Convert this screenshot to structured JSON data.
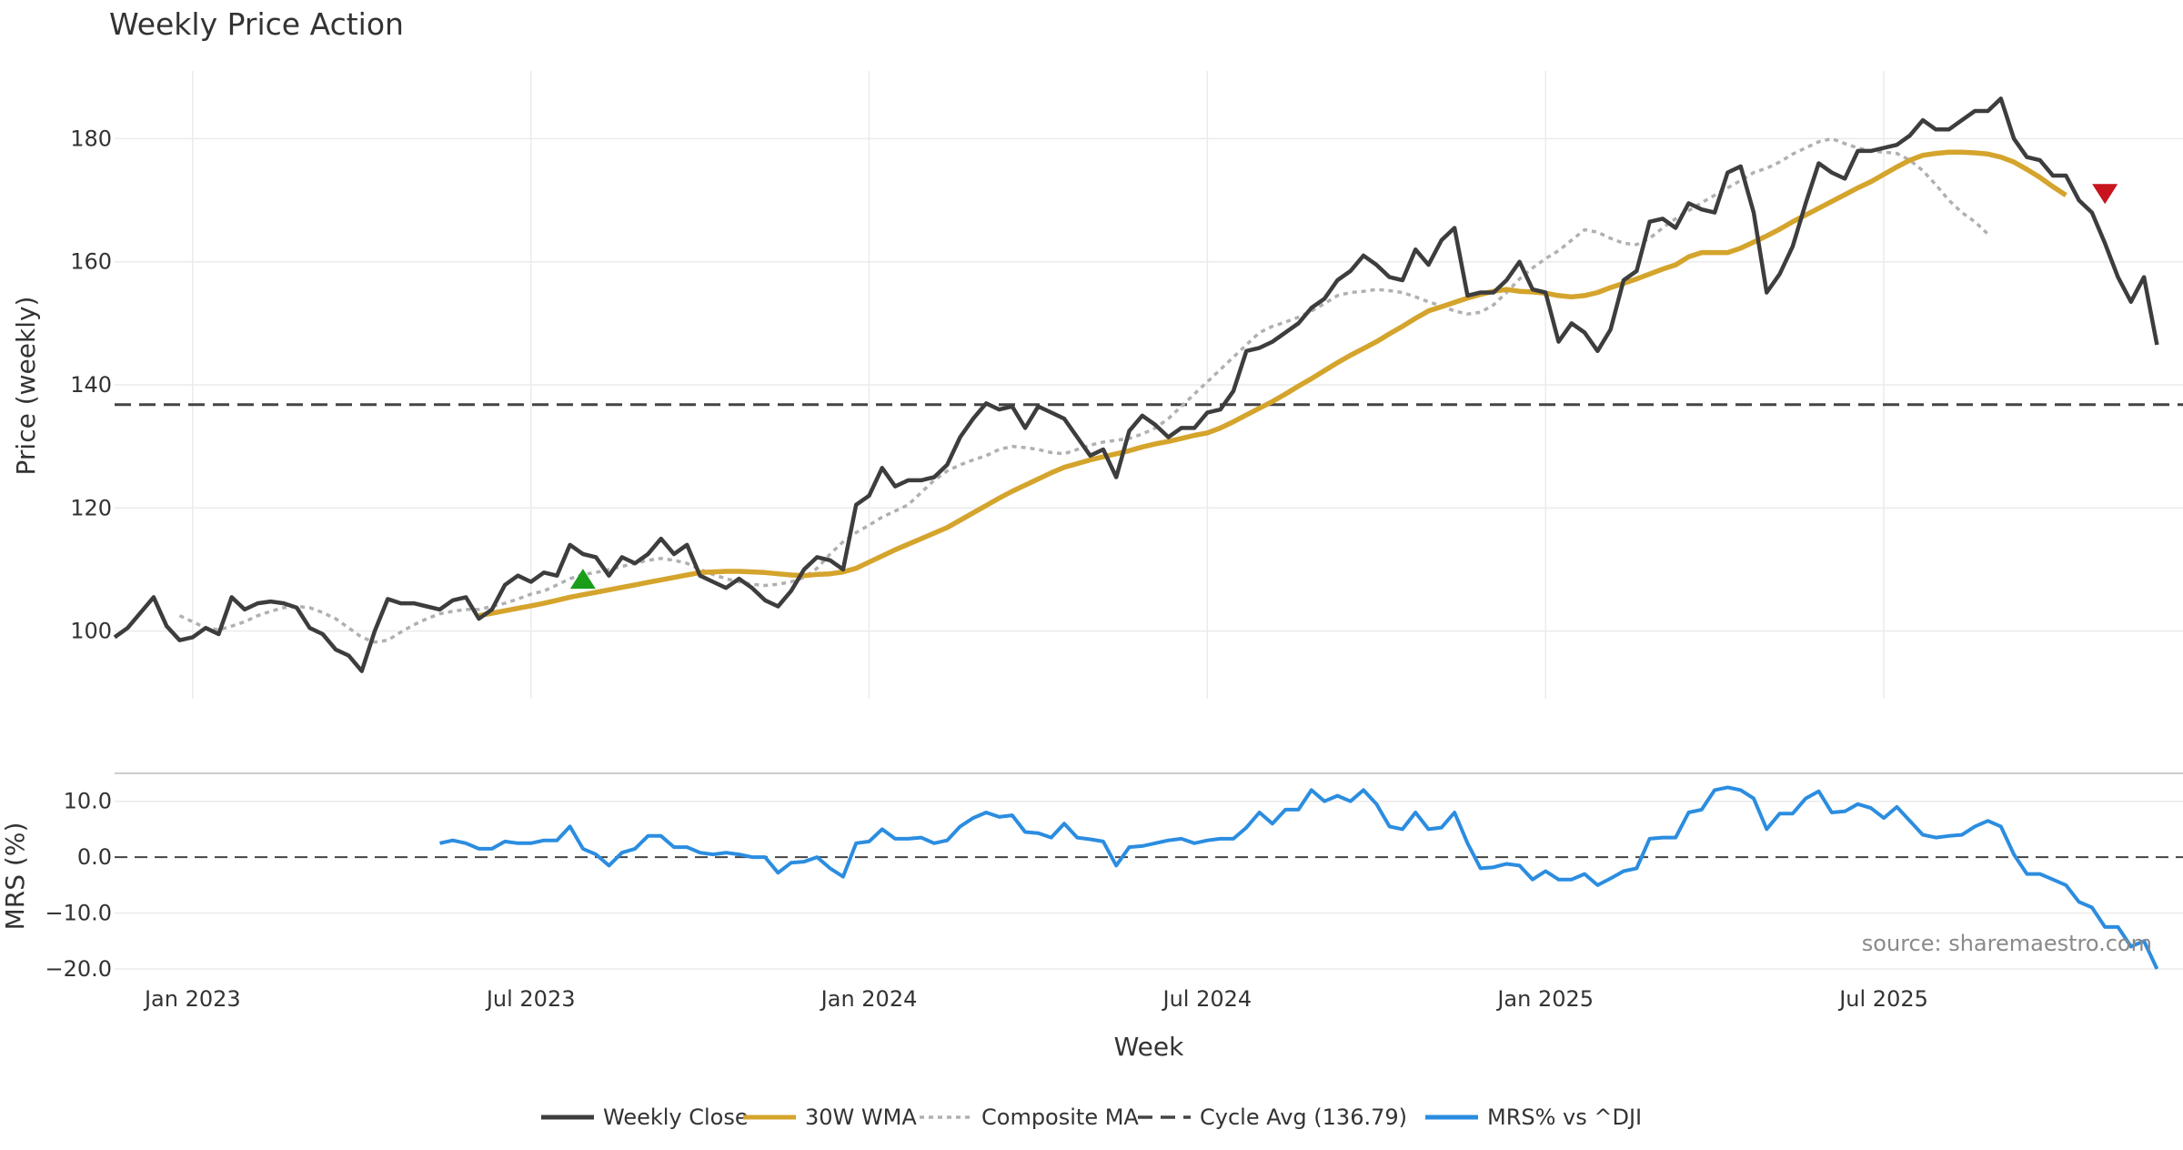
{
  "chart_data": {
    "type": "line",
    "title": "Weekly Price Action",
    "xlabel": "Week",
    "source": "source: sharemaestro.com",
    "colors": {
      "close": "#3d3d3d",
      "wma": "#d4a42c",
      "composite": "#b0b0b0",
      "cycle": "#444444",
      "mrs": "#2b8de0",
      "buy": "#1a9e1a",
      "sell": "#c8141e",
      "grid": "#ebebeb"
    },
    "x_ticks": [
      "Jan 2023",
      "Jul 2023",
      "Jan 2024",
      "Jul 2024",
      "Jan 2025",
      "Jul 2025"
    ],
    "x_tick_weeks": [
      6,
      32,
      58,
      84,
      110,
      136
    ],
    "price_panel": {
      "ylabel": "Price (weekly)",
      "ylim": [
        89,
        191
      ],
      "yticks": [
        100,
        120,
        140,
        160,
        180
      ],
      "grid": true,
      "cycle_avg": 136.79,
      "weekly_close": [
        99.0,
        100.5,
        103.0,
        105.5,
        100.8,
        98.5,
        99.0,
        100.5,
        99.5,
        105.5,
        103.5,
        104.5,
        104.8,
        104.5,
        103.8,
        100.5,
        99.5,
        97.0,
        96.0,
        93.5,
        100.0,
        105.2,
        104.5,
        104.5,
        104.0,
        103.5,
        105.0,
        105.5,
        102.0,
        103.5,
        107.5,
        109.0,
        108.0,
        109.5,
        109.0,
        114.0,
        112.5,
        112.0,
        109.0,
        112.0,
        111.0,
        112.5,
        115.0,
        112.5,
        114.0,
        109.0,
        108.0,
        107.0,
        108.5,
        107.0,
        105.0,
        104.0,
        106.5,
        110.0,
        112.0,
        111.5,
        110.0,
        120.5,
        122.0,
        126.5,
        123.5,
        124.5,
        124.5,
        125.0,
        127.0,
        131.5,
        134.5,
        137.0,
        136.0,
        136.5,
        133.0,
        136.5,
        135.5,
        134.5,
        131.5,
        128.5,
        129.5,
        125.0,
        132.5,
        135.0,
        133.5,
        131.5,
        133.0,
        133.0,
        135.5,
        136.0,
        139.0,
        145.5,
        146.0,
        147.0,
        148.5,
        150.0,
        152.5,
        154.0,
        157.0,
        158.5,
        161.0,
        159.5,
        157.5,
        157.0,
        162.0,
        159.5,
        163.5,
        165.5,
        154.5,
        155.0,
        155.0,
        157.0,
        160.0,
        155.5,
        155.0,
        147.0,
        150.0,
        148.5,
        145.5,
        149.0,
        157.0,
        158.5,
        166.5,
        167.0,
        165.5,
        169.5,
        168.5,
        168.0,
        174.5,
        175.5,
        168.0,
        155.0,
        158.0,
        162.5,
        169.5,
        176.0,
        174.5,
        173.5,
        178.0,
        178.0,
        178.5,
        179.0,
        180.5,
        183.0,
        181.5,
        181.5,
        183.0,
        184.5,
        184.5,
        186.5,
        180.0,
        177.0,
        176.5,
        174.0,
        174.0,
        170.0,
        168.0,
        163.0,
        157.5,
        153.5,
        157.5,
        146.5
      ],
      "wma_start": 28,
      "wma_30w": [
        102.5,
        102.9,
        103.3,
        103.7,
        104.1,
        104.5,
        105.0,
        105.5,
        105.9,
        106.3,
        106.7,
        107.1,
        107.5,
        107.9,
        108.3,
        108.7,
        109.1,
        109.5,
        109.6,
        109.7,
        109.7,
        109.6,
        109.5,
        109.3,
        109.1,
        109.0,
        109.2,
        109.3,
        109.6,
        110.2,
        111.2,
        112.2,
        113.2,
        114.1,
        115.0,
        115.9,
        116.8,
        118.0,
        119.2,
        120.4,
        121.6,
        122.7,
        123.7,
        124.7,
        125.7,
        126.6,
        127.2,
        127.8,
        128.3,
        128.8,
        129.3,
        129.9,
        130.4,
        130.8,
        131.3,
        131.8,
        132.2,
        133.0,
        134.0,
        135.1,
        136.2,
        137.3,
        138.5,
        139.8,
        141.0,
        142.3,
        143.6,
        144.8,
        145.9,
        147.0,
        148.3,
        149.5,
        150.8,
        152.0,
        152.7,
        153.4,
        154.1,
        154.7,
        155.2,
        155.5,
        155.2,
        155.1,
        154.9,
        154.5,
        154.3,
        154.5,
        155.0,
        155.8,
        156.5,
        157.2,
        158.0,
        158.8,
        159.5,
        160.8,
        161.5,
        161.5,
        161.5,
        162.2,
        163.2,
        164.2,
        165.3,
        166.5,
        167.6,
        168.7,
        169.8,
        170.9,
        172.0,
        173.0,
        174.2,
        175.4,
        176.5,
        177.3,
        177.6,
        177.8,
        177.8,
        177.7,
        177.5,
        177.0,
        176.2,
        175.0,
        173.7,
        172.2,
        170.8
      ],
      "composite_start": 5,
      "composite_ma": [
        102.5,
        101.5,
        100.5,
        100.2,
        100.8,
        101.5,
        102.5,
        103.2,
        103.8,
        104.0,
        103.8,
        103.0,
        102.0,
        100.5,
        99.0,
        98.2,
        98.5,
        99.8,
        101.0,
        102.0,
        102.8,
        103.2,
        103.5,
        103.5,
        104.0,
        104.5,
        105.2,
        106.0,
        106.5,
        107.5,
        108.5,
        109.2,
        109.5,
        110.0,
        110.5,
        111.0,
        111.5,
        111.8,
        111.5,
        111.0,
        110.0,
        109.2,
        108.5,
        108.0,
        107.6,
        107.4,
        107.6,
        108.0,
        108.7,
        110.2,
        112.5,
        114.5,
        116.0,
        117.2,
        118.5,
        119.5,
        120.5,
        122.5,
        124.5,
        126.0,
        127.0,
        127.8,
        128.5,
        129.5,
        130.0,
        129.8,
        129.5,
        129.0,
        128.8,
        129.5,
        130.2,
        130.7,
        131.0,
        131.3,
        132.0,
        133.0,
        134.5,
        136.5,
        138.5,
        140.5,
        142.5,
        144.5,
        146.5,
        148.5,
        149.5,
        150.2,
        151.0,
        152.0,
        153.2,
        154.5,
        155.0,
        155.2,
        155.5,
        155.3,
        155.0,
        154.3,
        153.5,
        152.8,
        152.0,
        151.5,
        151.8,
        153.0,
        155.0,
        157.2,
        159.0,
        160.5,
        161.8,
        163.5,
        165.2,
        164.8,
        163.8,
        163.0,
        162.8,
        163.8,
        165.5,
        167.0,
        168.3,
        169.6,
        170.8,
        172.0,
        173.2,
        174.5,
        175.2,
        176.2,
        177.5,
        178.5,
        179.5,
        180.0,
        179.2,
        178.5,
        178.0,
        177.8,
        177.6,
        176.5,
        174.8,
        172.5,
        170.0,
        168.0,
        166.5,
        164.5
      ],
      "markers": [
        {
          "type": "buy",
          "week": 36,
          "value": 108.5
        },
        {
          "type": "sell",
          "week": 153,
          "value": 171.0
        }
      ]
    },
    "mrs_panel": {
      "ylabel": "MRS (%)",
      "ylim": [
        -20,
        15
      ],
      "yticks": [
        10.0,
        0.0,
        -10.0,
        -20.0
      ],
      "ytick_labels": [
        "10.0",
        "0.0",
        "−10.0",
        "−20.0"
      ],
      "zero_line": 0,
      "start_week": 25,
      "series_name": "MRS% vs ^DJI",
      "values": [
        2.5,
        3.0,
        2.5,
        1.5,
        1.5,
        2.8,
        2.5,
        2.5,
        3.0,
        3.0,
        5.5,
        1.5,
        0.5,
        -1.5,
        0.8,
        1.5,
        3.8,
        3.8,
        1.8,
        1.8,
        0.8,
        0.5,
        0.8,
        0.5,
        0.0,
        0.0,
        -2.8,
        -1.0,
        -0.8,
        0.0,
        -2.0,
        -3.5,
        2.5,
        2.8,
        5.0,
        3.3,
        3.3,
        3.5,
        2.5,
        3.0,
        5.5,
        7.0,
        8.0,
        7.2,
        7.5,
        4.5,
        4.3,
        3.5,
        6.0,
        3.5,
        3.2,
        2.8,
        -1.5,
        1.8,
        2.0,
        2.5,
        3.0,
        3.3,
        2.5,
        3.0,
        3.3,
        3.3,
        5.3,
        8.0,
        6.0,
        8.5,
        8.5,
        12.0,
        10.0,
        11.0,
        10.0,
        12.0,
        9.5,
        5.5,
        5.0,
        8.0,
        5.0,
        5.3,
        8.0,
        2.5,
        -2.0,
        -1.8,
        -1.2,
        -1.5,
        -4.0,
        -2.5,
        -4.0,
        -4.0,
        -3.0,
        -5.0,
        -3.8,
        -2.5,
        -2.0,
        3.3,
        3.5,
        3.5,
        8.0,
        8.5,
        12.0,
        12.5,
        12.0,
        10.5,
        5.0,
        7.8,
        7.8,
        10.5,
        11.8,
        8.0,
        8.2,
        9.5,
        8.8,
        7.0,
        9.0,
        6.5,
        4.0,
        3.5,
        3.8,
        4.0,
        5.5,
        6.5,
        5.5,
        0.5,
        -3.0,
        -3.0,
        -4.0,
        -5.0,
        -8.0,
        -9.0,
        -12.5,
        -12.5,
        -16.0,
        -15.0,
        -20.0
      ]
    },
    "legend": [
      {
        "label": "Weekly Close",
        "style": "solid",
        "color": "#3d3d3d"
      },
      {
        "label": "30W WMA",
        "style": "solid",
        "color": "#d4a42c"
      },
      {
        "label": "Composite MA",
        "style": "dotted",
        "color": "#b0b0b0"
      },
      {
        "label": "Cycle Avg (136.79)",
        "style": "dashed",
        "color": "#444444"
      },
      {
        "label": "MRS% vs ^DJI",
        "style": "solid",
        "color": "#2b8de0"
      }
    ],
    "legend_position": "bottom-center"
  }
}
